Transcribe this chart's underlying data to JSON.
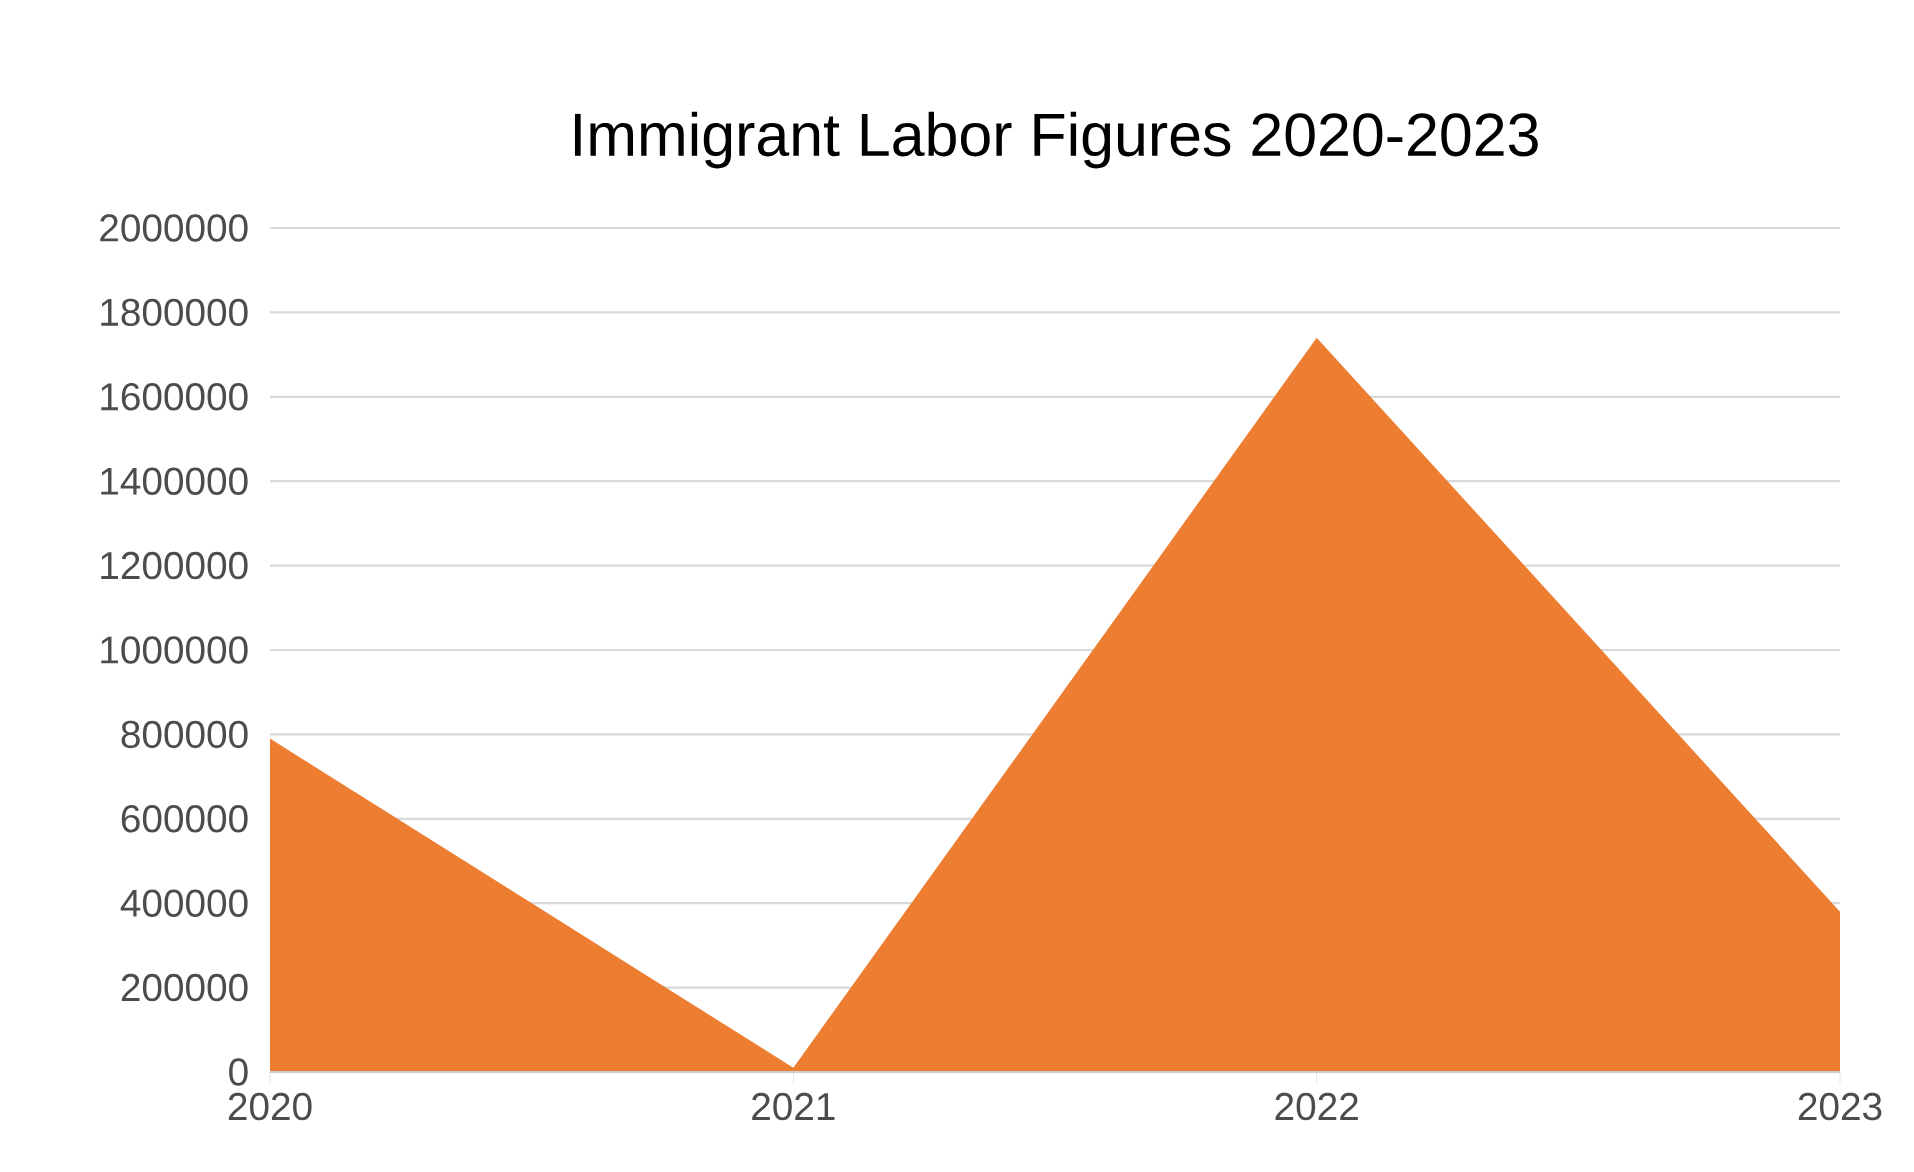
{
  "chart_data": {
    "type": "area",
    "title": "Immigrant Labor Figures 2020-2023",
    "categories": [
      "2020",
      "2021",
      "2022",
      "2023"
    ],
    "values": [
      790000,
      10000,
      1740000,
      380000
    ],
    "color": "#ed7d31",
    "ylim": [
      0,
      2000000
    ],
    "yticks": [
      0,
      200000,
      400000,
      600000,
      800000,
      1000000,
      1200000,
      1400000,
      1600000,
      1800000,
      2000000
    ],
    "grid": "y"
  }
}
